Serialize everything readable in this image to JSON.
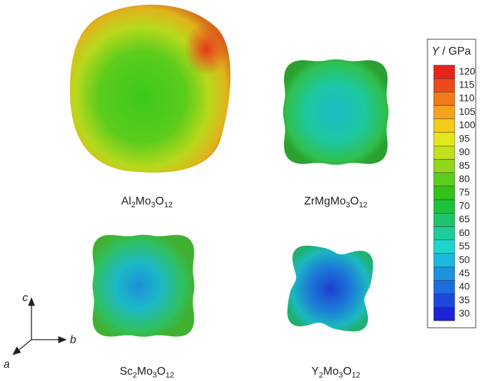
{
  "colorbar": {
    "title": [
      "Y",
      " / GPa"
    ],
    "ticks": [
      120,
      115,
      110,
      105,
      100,
      95,
      90,
      85,
      80,
      75,
      70,
      65,
      60,
      55,
      50,
      45,
      40,
      35,
      30
    ],
    "colors": [
      "#e8231a",
      "#eb4a1c",
      "#f07a1c",
      "#f5a21e",
      "#f3cc1a",
      "#e6e61c",
      "#c2e01c",
      "#8fd61c",
      "#5ccc1c",
      "#32c21c",
      "#1cc23a",
      "#1cc46c",
      "#1ccc9a",
      "#1cd6cc",
      "#1cb8e0",
      "#1c92e0",
      "#1c6ee0",
      "#1c48dc",
      "#1c24d6"
    ]
  },
  "panels": [
    {
      "label": [
        "Al",
        "2",
        "Mo",
        "3",
        "O",
        "12"
      ]
    },
    {
      "label": [
        "ZrMgMo",
        "3",
        "O",
        "12"
      ]
    },
    {
      "label": [
        "Sc",
        "2",
        "Mo",
        "3",
        "O",
        "12"
      ]
    },
    {
      "label": [
        "Y",
        "2",
        "Mo",
        "3",
        "O",
        "12"
      ]
    }
  ],
  "axes": {
    "a": "a",
    "b": "b",
    "c": "c"
  }
}
